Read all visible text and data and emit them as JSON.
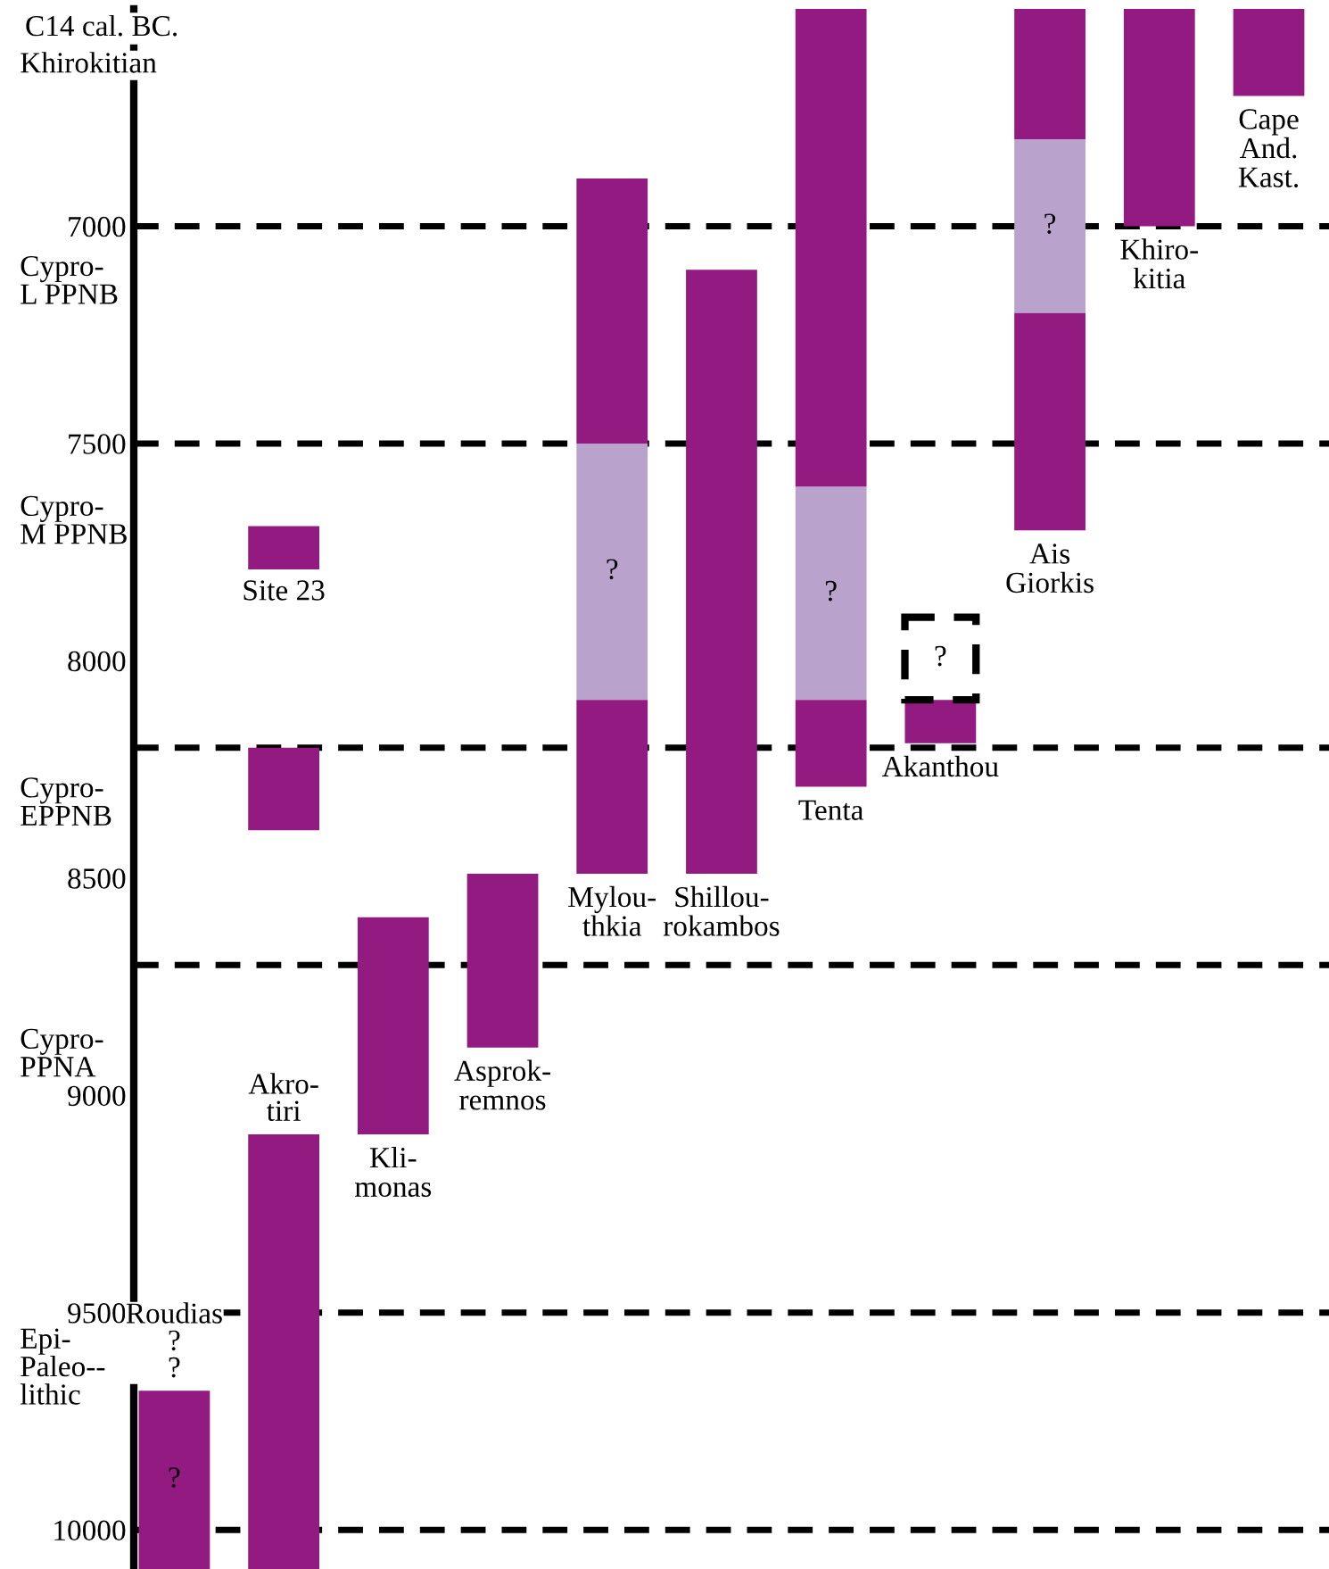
{
  "chart_data": {
    "type": "bar",
    "ylabel": "C14 cal. BC.",
    "categories": [
      "Roudias\n?\n?",
      "Akro-\ntiri",
      "Kli-\nmonas",
      "Asprok-\nremnos",
      "Mylou-\nthkia",
      "Shillou-\nrokambos",
      "Tenta",
      "Akanthou",
      "Ais\nGiorkis",
      "Khiro-\nkitia",
      "Cape\nAnd.\nKast."
    ],
    "series": [
      {
        "color": "#921a80",
        "base": [
          9680,
          9090,
          8590,
          8490,
          6890,
          7100,
          6500,
          8090,
          6500,
          6500,
          6500
        ],
        "values": [
          410,
          1000,
          500,
          400,
          610,
          1390,
          1100,
          100,
          300,
          500,
          200
        ],
        "value_labels": [
          "?",
          null,
          null,
          null,
          null,
          null,
          null,
          null,
          null,
          null,
          null
        ]
      },
      {
        "color": "#b9a2cb",
        "base": [
          null,
          null,
          null,
          null,
          7500,
          null,
          7600,
          null,
          6800,
          null,
          null
        ],
        "values": [
          null,
          null,
          null,
          null,
          590,
          null,
          490,
          null,
          400,
          null,
          null
        ],
        "value_labels": [
          null,
          null,
          null,
          null,
          "?",
          null,
          "?",
          null,
          "?",
          null,
          null
        ]
      },
      {
        "color": "#921a80",
        "base": [
          null,
          8200,
          null,
          null,
          8090,
          null,
          8090,
          null,
          7200,
          null,
          null
        ],
        "values": [
          null,
          190,
          null,
          null,
          400,
          null,
          200,
          null,
          500,
          null,
          null
        ]
      },
      {
        "color": "#921a80",
        "base": [
          null,
          7690,
          null,
          null,
          null,
          null,
          null,
          null,
          null,
          null,
          null
        ],
        "values": [
          null,
          100,
          null,
          null,
          null,
          null,
          null,
          null,
          null,
          null,
          null
        ],
        "value_labels": [
          null,
          "Site 23",
          null,
          null,
          null,
          null,
          null,
          null,
          null,
          null,
          null
        ]
      },
      {
        "color": "#000000",
        "line_style": "dashed",
        "base": [
          null,
          null,
          null,
          null,
          null,
          null,
          null,
          7900,
          null,
          null,
          null
        ],
        "values": [
          null,
          null,
          null,
          null,
          null,
          null,
          null,
          190,
          null,
          null,
          null
        ],
        "value_labels": [
          null,
          null,
          null,
          null,
          null,
          null,
          null,
          "?",
          null,
          null,
          null
        ]
      }
    ],
    "ylim": [
      10090,
      6500
    ],
    "yticks": [
      7000,
      7500,
      8000,
      8500,
      9000,
      9500,
      10000
    ],
    "ref_lines": [
      {
        "axis": "y",
        "value": 7000,
        "line_style": "dashed",
        "color": "#000000"
      },
      {
        "axis": "y",
        "value": 7500,
        "line_style": "dashed",
        "color": "#000000"
      },
      {
        "axis": "y",
        "value": 8200,
        "line_style": "dashed",
        "color": "#000000"
      },
      {
        "axis": "y",
        "value": 8700,
        "line_style": "dashed",
        "color": "#000000"
      },
      {
        "axis": "y",
        "value": 9500,
        "line_style": "dashed",
        "color": "#000000"
      },
      {
        "axis": "y",
        "value": 10000,
        "line_style": "dashed",
        "color": "#000000"
      }
    ],
    "annotations": [
      "Khirokitian",
      "Cypro-\nL PPNB",
      "Cypro-\nM PPNB",
      "Cypro-\nEPPNB",
      "Cypro-\nPPNA",
      "Epi-\nPaleo--\nlithic"
    ]
  }
}
